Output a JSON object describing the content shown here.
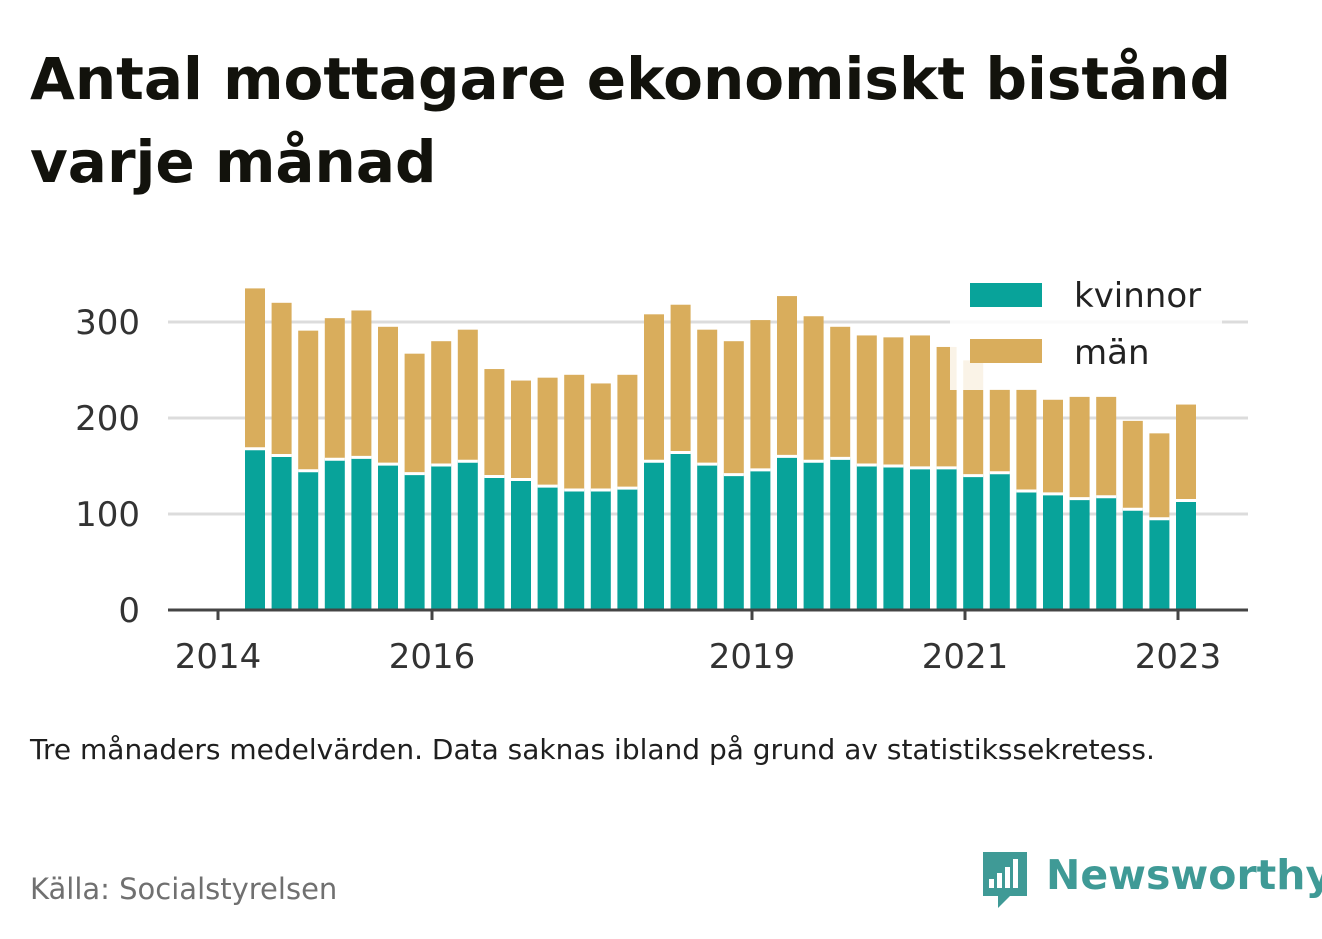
{
  "title": "Antal mottagare ekonomiskt bistånd varje månad",
  "note": "Tre månaders medelvärden. Data saknas ibland på grund av statistikssekretess.",
  "source": "Källa: Socialstyrelsen",
  "brand": {
    "name": "Newsworthy"
  },
  "colors": {
    "kvinnor": "#08a39a",
    "man": "#d9ad5c",
    "axis": "#444444",
    "grid": "#dcdcdc"
  },
  "chart_data": {
    "type": "bar",
    "stacked": true,
    "x_tick_labels": [
      "2014",
      "2016",
      "2019",
      "2021",
      "2023"
    ],
    "y_ticks": [
      0,
      100,
      200,
      300
    ],
    "ylim": [
      0,
      340
    ],
    "grid": true,
    "legend_position": "top-right",
    "series": [
      {
        "name": "kvinnor",
        "color": "#08a39a",
        "values": [
          168,
          161,
          145,
          157,
          159,
          152,
          142,
          151,
          155,
          139,
          136,
          129,
          125,
          125,
          127,
          155,
          164,
          152,
          141,
          146,
          160,
          155,
          158,
          151,
          150,
          148,
          148,
          140,
          143,
          124,
          121,
          116,
          118,
          105,
          95,
          114
        ]
      },
      {
        "name": "män",
        "color": "#d9ad5c",
        "values": [
          167,
          159,
          146,
          147,
          153,
          143,
          125,
          129,
          137,
          112,
          103,
          113,
          120,
          111,
          118,
          153,
          154,
          140,
          139,
          156,
          167,
          151,
          137,
          135,
          134,
          138,
          126,
          120,
          87,
          106,
          98,
          106,
          104,
          92,
          89,
          100
        ]
      }
    ]
  }
}
